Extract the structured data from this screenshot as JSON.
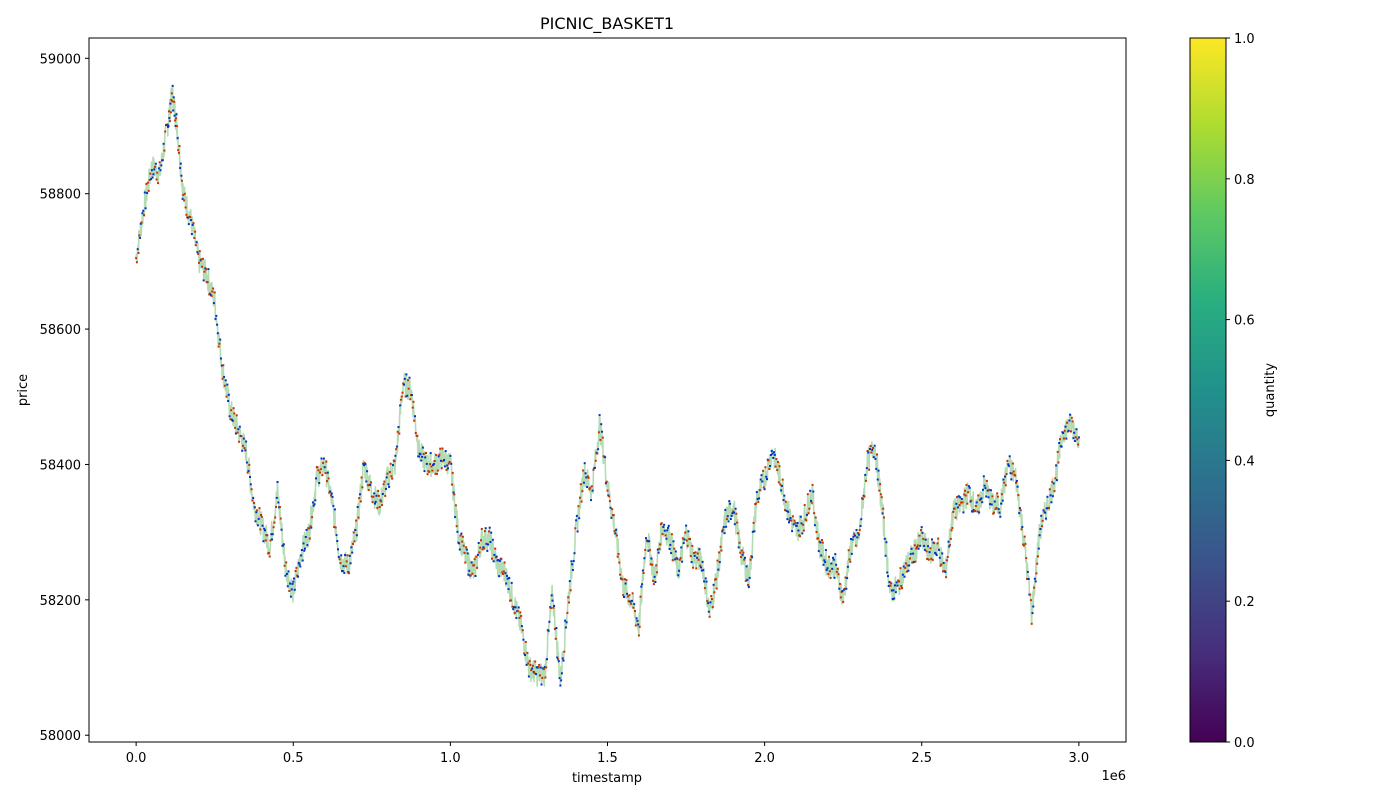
{
  "chart_data": {
    "type": "line",
    "title": "PICNIC_BASKET1",
    "xlabel": "timestamp",
    "ylabel": "price",
    "x_offset_label": "1e6",
    "x_tick_labels": [
      "0.0",
      "0.5",
      "1.0",
      "1.5",
      "2.0",
      "2.5",
      "3.0"
    ],
    "x_ticks": [
      0,
      500000,
      1000000,
      1500000,
      2000000,
      2500000,
      3000000
    ],
    "y_ticks": [
      58000,
      58200,
      58400,
      58600,
      58800,
      59000
    ],
    "xlim": [
      -150000,
      3150000
    ],
    "ylim": [
      57990,
      59030
    ],
    "grid": false,
    "colorbar": {
      "label": "quantity",
      "range": [
        0,
        1
      ],
      "ticks": [
        "0.0",
        "0.2",
        "0.4",
        "0.6",
        "0.8",
        "1.0"
      ],
      "colormap": "viridis"
    },
    "series": [
      {
        "style": "line",
        "color": "#b4dcb4",
        "x": [
          0,
          25000,
          50000,
          75000,
          100000,
          115000,
          130000,
          150000,
          175000,
          200000,
          225000,
          250000,
          275000,
          300000,
          325000,
          350000,
          375000,
          400000,
          425000,
          450000,
          475000,
          500000,
          525000,
          550000,
          575000,
          600000,
          625000,
          650000,
          675000,
          700000,
          725000,
          750000,
          775000,
          800000,
          825000,
          850000,
          875000,
          900000,
          925000,
          950000,
          975000,
          1000000,
          1025000,
          1050000,
          1075000,
          1100000,
          1125000,
          1150000,
          1175000,
          1200000,
          1225000,
          1250000,
          1275000,
          1300000,
          1325000,
          1350000,
          1375000,
          1400000,
          1425000,
          1450000,
          1475000,
          1500000,
          1525000,
          1550000,
          1575000,
          1600000,
          1625000,
          1650000,
          1675000,
          1700000,
          1725000,
          1750000,
          1775000,
          1800000,
          1825000,
          1850000,
          1875000,
          1900000,
          1925000,
          1950000,
          1975000,
          2000000,
          2025000,
          2050000,
          2075000,
          2100000,
          2125000,
          2150000,
          2175000,
          2200000,
          2225000,
          2250000,
          2275000,
          2300000,
          2325000,
          2350000,
          2375000,
          2400000,
          2425000,
          2450000,
          2475000,
          2500000,
          2525000,
          2550000,
          2575000,
          2600000,
          2625000,
          2650000,
          2675000,
          2700000,
          2725000,
          2750000,
          2775000,
          2800000,
          2825000,
          2850000,
          2875000,
          2900000,
          2925000,
          2950000,
          2975000,
          3000000
        ],
        "y": [
          58705,
          58780,
          58840,
          58830,
          58900,
          58950,
          58900,
          58800,
          58760,
          58700,
          58680,
          58640,
          58540,
          58480,
          58450,
          58420,
          58340,
          58310,
          58280,
          58360,
          58250,
          58210,
          58270,
          58300,
          58380,
          58400,
          58340,
          58260,
          58250,
          58300,
          58400,
          58360,
          58340,
          58380,
          58400,
          58520,
          58510,
          58420,
          58400,
          58400,
          58410,
          58400,
          58300,
          58260,
          58240,
          58290,
          58290,
          58250,
          58240,
          58200,
          58160,
          58100,
          58090,
          58090,
          58210,
          58080,
          58200,
          58300,
          58390,
          58360,
          58460,
          58370,
          58300,
          58220,
          58200,
          58160,
          58300,
          58230,
          58310,
          58290,
          58240,
          58300,
          58260,
          58260,
          58180,
          58240,
          58320,
          58340,
          58270,
          58230,
          58350,
          58380,
          58420,
          58380,
          58330,
          58300,
          58320,
          58360,
          58280,
          58250,
          58250,
          58200,
          58280,
          58290,
          58400,
          58430,
          58330,
          58210,
          58220,
          58250,
          58270,
          58290,
          58270,
          58280,
          58240,
          58330,
          58340,
          58360,
          58330,
          58370,
          58340,
          58340,
          58400,
          58380,
          58290,
          58180,
          58300,
          58340,
          58380,
          58450,
          58460,
          58440
        ]
      }
    ],
    "markers": {
      "colors": [
        "#c83200",
        "#0032c8"
      ],
      "size": 2
    }
  }
}
